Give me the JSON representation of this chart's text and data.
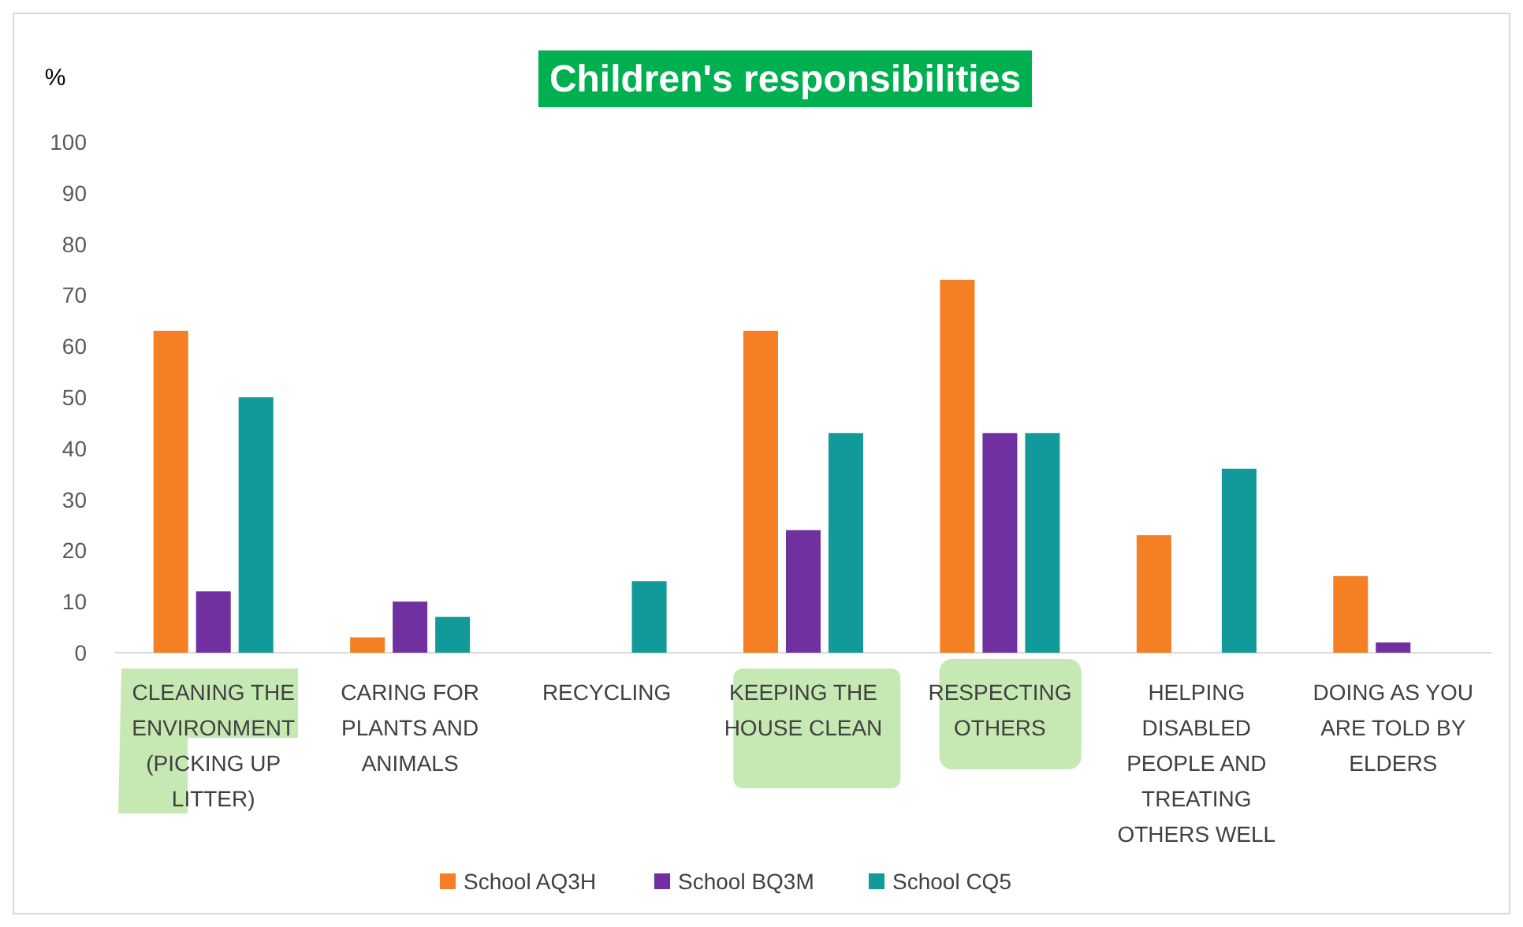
{
  "chart_data": {
    "type": "bar",
    "title": "Children's responsibilities",
    "ylabel": "%",
    "categories": [
      "CLEANING THE ENVIRONMENT (PICKING UP LITTER)",
      "CARING FOR PLANTS AND ANIMALS",
      "RECYCLING",
      "KEEPING THE HOUSE CLEAN",
      "RESPECTING OTHERS",
      "HELPING DISABLED PEOPLE AND TREATING OTHERS WELL",
      "DOING AS YOU ARE TOLD BY ELDERS"
    ],
    "series": [
      {
        "name": "School AQ3H",
        "color": "#f47f24",
        "values": [
          63,
          3,
          0,
          63,
          73,
          23,
          15
        ]
      },
      {
        "name": "School BQ3M",
        "color": "#7030a0",
        "values": [
          12,
          10,
          0,
          24,
          43,
          0,
          2
        ]
      },
      {
        "name": "School CQ5",
        "color": "#12999a",
        "values": [
          50,
          7,
          14,
          43,
          43,
          36,
          0
        ]
      }
    ],
    "ylim": [
      0,
      100
    ],
    "yticks": [
      0,
      10,
      20,
      30,
      40,
      50,
      60,
      70,
      80,
      90,
      100
    ],
    "grid": false,
    "legend": "bottom"
  }
}
